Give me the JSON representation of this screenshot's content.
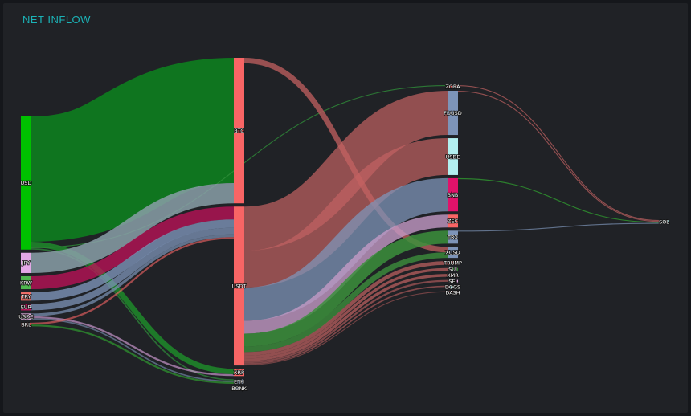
{
  "title": "NET INFLOW",
  "colors": {
    "background": "#202226",
    "title": "#1bb3b7"
  },
  "chart_data": {
    "type": "sankey",
    "title": "NET INFLOW",
    "nodes": [
      {
        "name": "USD",
        "column": 0,
        "color": "#00c000"
      },
      {
        "name": "JPY",
        "column": 0,
        "color": "#e3a8e6"
      },
      {
        "name": "KRW",
        "column": 0,
        "color": "#4fb84f"
      },
      {
        "name": "TRY",
        "column": 0,
        "color": "#f0706a"
      },
      {
        "name": "EUR",
        "column": 0,
        "color": "#e0126a"
      },
      {
        "name": "USDC",
        "column": 0,
        "color": "#e8b5e8"
      },
      {
        "name": "BRL",
        "column": 0,
        "color": "#f05a5a"
      },
      {
        "name": "BTC",
        "column": 1,
        "color": "#f86565"
      },
      {
        "name": "USDT",
        "column": 1,
        "color": "#f86565"
      },
      {
        "name": "XRP",
        "column": 1,
        "color": "#f86565"
      },
      {
        "name": "ETH",
        "column": 1,
        "color": "#8ea0ba"
      },
      {
        "name": "BONK",
        "column": 1,
        "color": "#8ea0ba"
      },
      {
        "name": "ZORA",
        "column": 2,
        "color": "#f86565"
      },
      {
        "name": "FDUSD",
        "column": 2,
        "color": "#7d94b8"
      },
      {
        "name": "USDE",
        "column": 2,
        "color": "#b2efef"
      },
      {
        "name": "BNB",
        "column": 2,
        "color": "#e0126a"
      },
      {
        "name": "ZEC",
        "column": 2,
        "color": "#f86565"
      },
      {
        "name": "TRX",
        "column": 2,
        "color": "#7d94b8"
      },
      {
        "name": "XUSD",
        "column": 2,
        "color": "#7d94b8"
      },
      {
        "name": "TRUMP",
        "column": 2,
        "color": "#f86565"
      },
      {
        "name": "SUI",
        "column": 2,
        "color": "#2f9a2f"
      },
      {
        "name": "XMR",
        "column": 2,
        "color": "#f86565"
      },
      {
        "name": "SEI",
        "column": 2,
        "color": "#e8b5e8"
      },
      {
        "name": "DOGS",
        "column": 2,
        "color": "#b2efef"
      },
      {
        "name": "DASH",
        "column": 2,
        "color": "#f86565"
      },
      {
        "name": "SOL",
        "column": 3,
        "color": "#b2efef"
      }
    ],
    "links": [
      {
        "source": "USD",
        "target": "BTC",
        "value": 136,
        "color": "#0f7a1f",
        "opacity": 0.95
      },
      {
        "source": "USD",
        "target": "XRP",
        "value": 6,
        "color": "#1e8a2a",
        "opacity": 0.85
      },
      {
        "source": "USD",
        "target": "ZORA",
        "value": 1,
        "color": "#2f8f3a",
        "opacity": 0.8
      },
      {
        "source": "USD",
        "target": "ETH",
        "value": 1.5,
        "color": "#2f8f3a",
        "opacity": 0.7
      },
      {
        "source": "JPY",
        "target": "BTC",
        "value": 22,
        "color": "#8a9fa8",
        "opacity": 0.85
      },
      {
        "source": "KRW",
        "target": "USDT",
        "value": 14,
        "color": "#c0125a",
        "opacity": 0.75
      },
      {
        "source": "TRY",
        "target": "USDT",
        "value": 9,
        "color": "#7d94b8",
        "opacity": 0.8
      },
      {
        "source": "EUR",
        "target": "USDT",
        "value": 7,
        "color": "#7d94b8",
        "opacity": 0.75
      },
      {
        "source": "USDC",
        "target": "USDT",
        "value": 3,
        "color": "#7d94b8",
        "opacity": 0.7
      },
      {
        "source": "USDC",
        "target": "XRP",
        "value": 2,
        "color": "#e3a8e6",
        "opacity": 0.6
      },
      {
        "source": "USDC",
        "target": "ETH",
        "value": 1.5,
        "color": "#7d94b8",
        "opacity": 0.6
      },
      {
        "source": "BRL",
        "target": "USDT",
        "value": 2,
        "color": "#f86565",
        "opacity": 0.6
      },
      {
        "source": "BRL",
        "target": "ETH",
        "value": 2,
        "color": "#2f9a2f",
        "opacity": 0.7
      },
      {
        "source": "BTC",
        "target": "XUSD",
        "value": 6,
        "color": "#b85d5d",
        "opacity": 0.8
      },
      {
        "source": "USDT",
        "target": "FDUSD",
        "value": 48,
        "color": "#c36262",
        "opacity": 0.7
      },
      {
        "source": "USDT",
        "target": "USDE",
        "value": 40,
        "color": "#c36262",
        "opacity": 0.7
      },
      {
        "source": "USDT",
        "target": "BNB",
        "value": 36,
        "color": "#7d94b8",
        "opacity": 0.75
      },
      {
        "source": "USDT",
        "target": "ZEC",
        "value": 14,
        "color": "#c39ac6",
        "opacity": 0.8
      },
      {
        "source": "USDT",
        "target": "TRX",
        "value": 14,
        "color": "#3c8f3c",
        "opacity": 0.85
      },
      {
        "source": "USDT",
        "target": "XUSD",
        "value": 6,
        "color": "#3c8f3c",
        "opacity": 0.8
      },
      {
        "source": "USDT",
        "target": "TRUMP",
        "value": 4,
        "color": "#c36262",
        "opacity": 0.7
      },
      {
        "source": "USDT",
        "target": "SUI",
        "value": 3,
        "color": "#c36262",
        "opacity": 0.7
      },
      {
        "source": "USDT",
        "target": "XMR",
        "value": 3,
        "color": "#c36262",
        "opacity": 0.7
      },
      {
        "source": "USDT",
        "target": "SEI",
        "value": 2,
        "color": "#c36262",
        "opacity": 0.6
      },
      {
        "source": "USDT",
        "target": "DOGS",
        "value": 1.5,
        "color": "#c36262",
        "opacity": 0.6
      },
      {
        "source": "USDT",
        "target": "DASH",
        "value": 1,
        "color": "#c36262",
        "opacity": 0.5
      },
      {
        "source": "ZORA",
        "target": "SOL",
        "value": 1,
        "color": "#c36262",
        "opacity": 0.7
      },
      {
        "source": "FDUSD",
        "target": "SOL",
        "value": 1,
        "color": "#c36262",
        "opacity": 0.7
      },
      {
        "source": "BNB",
        "target": "SOL",
        "value": 1,
        "color": "#2f9a2f",
        "opacity": 0.8
      },
      {
        "source": "TRX",
        "target": "SOL",
        "value": 1,
        "color": "#7d94b8",
        "opacity": 0.7
      }
    ]
  }
}
